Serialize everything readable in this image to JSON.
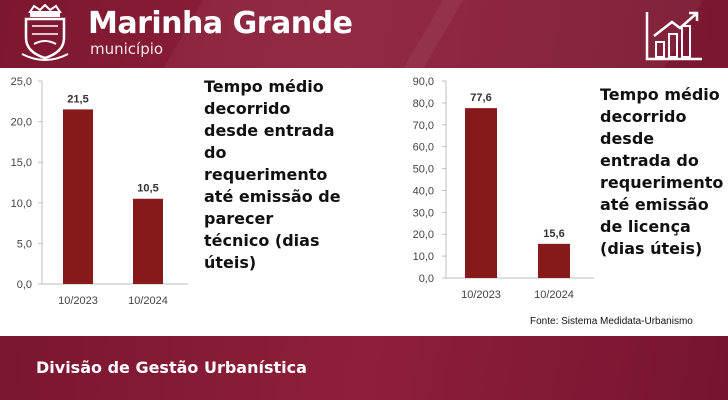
{
  "header": {
    "title": "Marinha Grande",
    "subtitle": "município",
    "crest_icon": "municipal-crest-icon",
    "stats_icon": "bar-chart-trend-icon",
    "background_color": "#8e1f3a"
  },
  "footer": {
    "title": "Divisão de Gestão Urbanística"
  },
  "source_note": "Fonte: Sistema Medidata-Urbanismo",
  "bar_color": "#861a1a",
  "chart_data": [
    {
      "type": "bar",
      "description": "Tempo médio decorrido desde entrada do requerimento até emissão de parecer técnico (dias úteis)",
      "categories": [
        "10/2023",
        "10/2024"
      ],
      "values": [
        21.5,
        10.5
      ],
      "value_labels": [
        "21,5",
        "10,5"
      ],
      "ylim": [
        0,
        25
      ],
      "yticks": [
        "0,0",
        "5,0",
        "10,0",
        "15,0",
        "20,0",
        "25,0"
      ],
      "ytick_values": [
        0,
        5,
        10,
        15,
        20,
        25
      ],
      "grid": false
    },
    {
      "type": "bar",
      "description": "Tempo médio decorrido desde entrada do requerimento até emissão de licença (dias úteis)",
      "categories": [
        "10/2023",
        "10/2024"
      ],
      "values": [
        77.6,
        15.6
      ],
      "value_labels": [
        "77,6",
        "15,6"
      ],
      "ylim": [
        0,
        90
      ],
      "yticks": [
        "0,0",
        "10,0",
        "20,0",
        "30,0",
        "40,0",
        "50,0",
        "60,0",
        "70,0",
        "80,0",
        "90,0"
      ],
      "ytick_values": [
        0,
        10,
        20,
        30,
        40,
        50,
        60,
        70,
        80,
        90
      ],
      "grid": false
    }
  ]
}
